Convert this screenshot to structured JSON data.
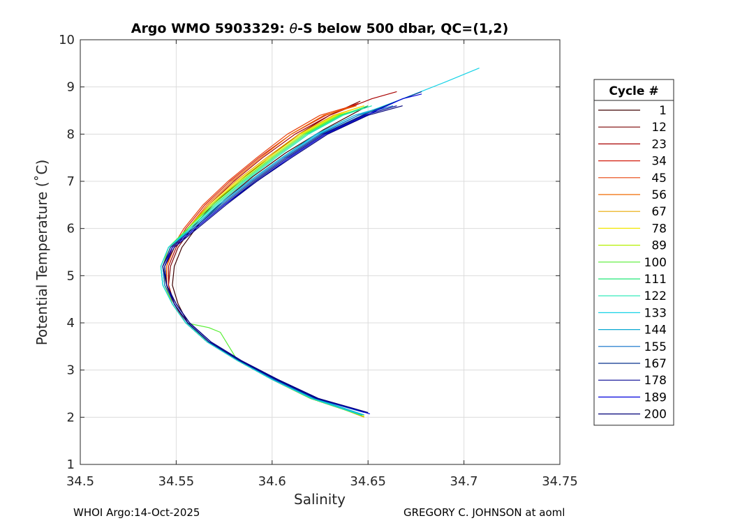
{
  "chart_data": {
    "type": "line",
    "title": "Argo WMO 5903329: θ-S below 500 dbar,  QC=(1,2)",
    "xlabel": "Salinity",
    "ylabel": "Potential Temperature (˚C)",
    "xlim": [
      34.5,
      34.75
    ],
    "ylim": [
      1,
      10
    ],
    "xticks": [
      "34.5",
      "34.55",
      "34.6",
      "34.65",
      "34.7",
      "34.75"
    ],
    "yticks": [
      "1",
      "2",
      "3",
      "4",
      "5",
      "6",
      "7",
      "8",
      "9",
      "10"
    ],
    "grid": true,
    "legend": {
      "title": "Cycle #",
      "placement": "right outside",
      "entries": [
        {
          "label": "1",
          "color": "#3d0000"
        },
        {
          "label": "12",
          "color": "#7a0000"
        },
        {
          "label": "23",
          "color": "#a80000"
        },
        {
          "label": "34",
          "color": "#d21c0c"
        },
        {
          "label": "45",
          "color": "#e8400a"
        },
        {
          "label": "56",
          "color": "#f06a00"
        },
        {
          "label": "67",
          "color": "#e8a800"
        },
        {
          "label": "78",
          "color": "#f2e600"
        },
        {
          "label": "89",
          "color": "#b4f000"
        },
        {
          "label": "100",
          "color": "#55ee30"
        },
        {
          "label": "111",
          "color": "#22e878"
        },
        {
          "label": "122",
          "color": "#1ee8b4"
        },
        {
          "label": "133",
          "color": "#14d2e6"
        },
        {
          "label": "144",
          "color": "#0aa8d2"
        },
        {
          "label": "155",
          "color": "#0a6ec8"
        },
        {
          "label": "167",
          "color": "#06308c"
        },
        {
          "label": "178",
          "color": "#000090"
        },
        {
          "label": "189",
          "color": "#0000dc"
        },
        {
          "label": "200",
          "color": "#000078"
        }
      ]
    },
    "series": [
      {
        "name": "1",
        "color": "#3d0000",
        "x": [
          34.646,
          34.62,
          34.6,
          34.582,
          34.566,
          34.556,
          34.551,
          34.548,
          34.549,
          34.553,
          34.562,
          34.575,
          34.59,
          34.607,
          34.627,
          34.65
        ],
        "y": [
          2.05,
          2.4,
          2.8,
          3.2,
          3.6,
          4.0,
          4.4,
          4.8,
          5.2,
          5.6,
          6.1,
          6.6,
          7.1,
          7.6,
          8.1,
          8.6
        ]
      },
      {
        "name": "12",
        "color": "#7a0000",
        "x": [
          34.646,
          34.62,
          34.6,
          34.582,
          34.566,
          34.555,
          34.549,
          34.546,
          34.547,
          34.551,
          34.558,
          34.569,
          34.583,
          34.598,
          34.614,
          34.63,
          34.646
        ],
        "y": [
          2.05,
          2.4,
          2.8,
          3.2,
          3.6,
          4.0,
          4.4,
          4.8,
          5.2,
          5.6,
          6.0,
          6.5,
          7.0,
          7.5,
          8.0,
          8.4,
          8.7
        ]
      },
      {
        "name": "23",
        "color": "#a80000",
        "x": [
          34.646,
          34.62,
          34.6,
          34.582,
          34.566,
          34.555,
          34.549,
          34.546,
          34.546,
          34.55,
          34.556,
          34.567,
          34.58,
          34.595,
          34.612,
          34.63,
          34.652,
          34.665
        ],
        "y": [
          2.05,
          2.4,
          2.8,
          3.2,
          3.6,
          4.0,
          4.4,
          4.8,
          5.2,
          5.6,
          6.0,
          6.5,
          7.0,
          7.5,
          8.0,
          8.4,
          8.75,
          8.9
        ]
      },
      {
        "name": "34",
        "color": "#d21c0c",
        "x": [
          34.646,
          34.62,
          34.6,
          34.582,
          34.566,
          34.555,
          34.548,
          34.545,
          34.545,
          34.549,
          34.555,
          34.565,
          34.578,
          34.593,
          34.61,
          34.628,
          34.645
        ],
        "y": [
          2.05,
          2.4,
          2.8,
          3.2,
          3.6,
          4.0,
          4.4,
          4.8,
          5.2,
          5.6,
          6.0,
          6.5,
          7.0,
          7.5,
          8.0,
          8.4,
          8.65
        ]
      },
      {
        "name": "45",
        "color": "#e8400a",
        "x": [
          34.646,
          34.62,
          34.6,
          34.582,
          34.566,
          34.555,
          34.548,
          34.545,
          34.545,
          34.548,
          34.554,
          34.564,
          34.577,
          34.592,
          34.608,
          34.625,
          34.642
        ],
        "y": [
          2.05,
          2.4,
          2.8,
          3.2,
          3.6,
          4.0,
          4.4,
          4.8,
          5.2,
          5.6,
          6.0,
          6.5,
          7.0,
          7.5,
          8.0,
          8.4,
          8.6
        ]
      },
      {
        "name": "56",
        "color": "#f06a00",
        "x": [
          34.646,
          34.62,
          34.6,
          34.582,
          34.566,
          34.555,
          34.548,
          34.545,
          34.545,
          34.549,
          34.556,
          34.566,
          34.579,
          34.594,
          34.61,
          34.627,
          34.644
        ],
        "y": [
          2.05,
          2.4,
          2.8,
          3.2,
          3.6,
          4.0,
          4.4,
          4.8,
          5.2,
          5.6,
          6.0,
          6.5,
          7.0,
          7.5,
          8.0,
          8.4,
          8.6
        ]
      },
      {
        "name": "67",
        "color": "#e8a800",
        "x": [
          34.648,
          34.622,
          34.601,
          34.583,
          34.567,
          34.555,
          34.548,
          34.544,
          34.544,
          34.548,
          34.556,
          34.567,
          34.581,
          34.597,
          34.614,
          34.632,
          34.648
        ],
        "y": [
          2.0,
          2.4,
          2.8,
          3.2,
          3.6,
          4.0,
          4.4,
          4.8,
          5.2,
          5.6,
          6.0,
          6.5,
          7.0,
          7.5,
          8.0,
          8.4,
          8.6
        ]
      },
      {
        "name": "78",
        "color": "#f2e600",
        "x": [
          34.646,
          34.62,
          34.6,
          34.582,
          34.566,
          34.555,
          34.548,
          34.544,
          34.543,
          34.547,
          34.556,
          34.568,
          34.582,
          34.598,
          34.615,
          34.633,
          34.648
        ],
        "y": [
          2.05,
          2.4,
          2.8,
          3.2,
          3.6,
          4.0,
          4.4,
          4.8,
          5.2,
          5.6,
          6.0,
          6.5,
          7.0,
          7.5,
          8.0,
          8.4,
          8.6
        ]
      },
      {
        "name": "89",
        "color": "#b4f000",
        "x": [
          34.648,
          34.621,
          34.6,
          34.582,
          34.567,
          34.555,
          34.548,
          34.544,
          34.543,
          34.546,
          34.556,
          34.568,
          34.583,
          34.599,
          34.616,
          34.634,
          34.648
        ],
        "y": [
          2.02,
          2.4,
          2.8,
          3.2,
          3.6,
          4.0,
          4.4,
          4.8,
          5.2,
          5.6,
          6.0,
          6.5,
          7.0,
          7.5,
          8.0,
          8.4,
          8.55
        ]
      },
      {
        "name": "100",
        "color": "#55ee30",
        "x": [
          34.647,
          34.621,
          34.6,
          34.582,
          34.573,
          34.567,
          34.555,
          34.548,
          34.543,
          34.542,
          34.546,
          34.556,
          34.569,
          34.584,
          34.6,
          34.617,
          34.635,
          34.648
        ],
        "y": [
          2.03,
          2.4,
          2.8,
          3.2,
          3.8,
          3.9,
          4.0,
          4.4,
          4.8,
          5.2,
          5.6,
          6.0,
          6.5,
          7.0,
          7.5,
          8.0,
          8.4,
          8.55
        ]
      },
      {
        "name": "111",
        "color": "#22e878",
        "x": [
          34.646,
          34.62,
          34.6,
          34.582,
          34.566,
          34.555,
          34.548,
          34.543,
          34.542,
          34.546,
          34.557,
          34.57,
          34.585,
          34.601,
          34.618,
          34.636,
          34.65
        ],
        "y": [
          2.05,
          2.4,
          2.8,
          3.2,
          3.6,
          4.0,
          4.4,
          4.8,
          5.2,
          5.6,
          6.0,
          6.5,
          7.0,
          7.5,
          8.0,
          8.4,
          8.6
        ]
      },
      {
        "name": "122",
        "color": "#1ee8b4",
        "x": [
          34.647,
          34.621,
          34.6,
          34.582,
          34.566,
          34.555,
          34.548,
          34.543,
          34.542,
          34.546,
          34.557,
          34.571,
          34.586,
          34.602,
          34.619,
          34.637,
          34.652
        ],
        "y": [
          2.05,
          2.4,
          2.8,
          3.2,
          3.6,
          4.0,
          4.4,
          4.8,
          5.2,
          5.6,
          6.0,
          6.5,
          7.0,
          7.5,
          8.0,
          8.4,
          8.6
        ]
      },
      {
        "name": "133",
        "color": "#14d2e6",
        "x": [
          34.647,
          34.621,
          34.6,
          34.582,
          34.566,
          34.555,
          34.548,
          34.543,
          34.542,
          34.546,
          34.558,
          34.572,
          34.588,
          34.605,
          34.624,
          34.645,
          34.665,
          34.69,
          34.708
        ],
        "y": [
          2.05,
          2.4,
          2.8,
          3.2,
          3.6,
          4.0,
          4.4,
          4.8,
          5.2,
          5.6,
          6.0,
          6.5,
          7.0,
          7.5,
          8.0,
          8.4,
          8.7,
          9.1,
          9.4
        ]
      },
      {
        "name": "144",
        "color": "#0aa8d2",
        "x": [
          34.648,
          34.622,
          34.601,
          34.583,
          34.567,
          34.556,
          34.549,
          34.544,
          34.543,
          34.547,
          34.558,
          34.572,
          34.588,
          34.605,
          34.623,
          34.643,
          34.66
        ],
        "y": [
          2.05,
          2.4,
          2.8,
          3.2,
          3.6,
          4.0,
          4.4,
          4.8,
          5.2,
          5.6,
          6.0,
          6.5,
          7.0,
          7.5,
          8.0,
          8.4,
          8.6
        ]
      },
      {
        "name": "155",
        "color": "#0a6ec8",
        "x": [
          34.648,
          34.622,
          34.601,
          34.583,
          34.567,
          34.556,
          34.549,
          34.544,
          34.543,
          34.547,
          34.559,
          34.573,
          34.589,
          34.606,
          34.625,
          34.645,
          34.663
        ],
        "y": [
          2.1,
          2.4,
          2.8,
          3.2,
          3.6,
          4.0,
          4.4,
          4.8,
          5.2,
          5.6,
          6.0,
          6.5,
          7.0,
          7.5,
          8.0,
          8.4,
          8.6
        ]
      },
      {
        "name": "167",
        "color": "#06308c",
        "x": [
          34.649,
          34.623,
          34.602,
          34.583,
          34.567,
          34.556,
          34.549,
          34.545,
          34.543,
          34.547,
          34.559,
          34.574,
          34.59,
          34.607,
          34.626,
          34.647,
          34.665,
          34.678
        ],
        "y": [
          2.1,
          2.4,
          2.8,
          3.2,
          3.6,
          4.0,
          4.4,
          4.8,
          5.2,
          5.6,
          6.0,
          6.5,
          7.0,
          7.5,
          8.0,
          8.4,
          8.7,
          8.9
        ]
      },
      {
        "name": "178",
        "color": "#000090",
        "x": [
          34.649,
          34.623,
          34.602,
          34.583,
          34.567,
          34.556,
          34.549,
          34.545,
          34.543,
          34.548,
          34.56,
          34.575,
          34.591,
          34.608,
          34.627,
          34.648,
          34.665
        ],
        "y": [
          2.1,
          2.4,
          2.8,
          3.2,
          3.6,
          4.0,
          4.4,
          4.8,
          5.2,
          5.6,
          6.0,
          6.5,
          7.0,
          7.5,
          8.0,
          8.4,
          8.6
        ]
      },
      {
        "name": "189",
        "color": "#0000dc",
        "x": [
          34.651,
          34.624,
          34.603,
          34.584,
          34.568,
          34.557,
          34.55,
          34.545,
          34.544,
          34.548,
          34.56,
          34.575,
          34.592,
          34.609,
          34.628,
          34.649,
          34.668,
          34.678
        ],
        "y": [
          2.07,
          2.4,
          2.8,
          3.2,
          3.6,
          4.0,
          4.4,
          4.8,
          5.2,
          5.6,
          6.0,
          6.5,
          7.0,
          7.5,
          8.0,
          8.4,
          8.75,
          8.85
        ]
      },
      {
        "name": "200",
        "color": "#000078",
        "x": [
          34.65,
          34.624,
          34.603,
          34.584,
          34.568,
          34.557,
          34.55,
          34.545,
          34.544,
          34.549,
          34.561,
          34.576,
          34.592,
          34.61,
          34.629,
          34.65,
          34.668
        ],
        "y": [
          2.1,
          2.4,
          2.8,
          3.2,
          3.6,
          4.0,
          4.4,
          4.8,
          5.2,
          5.6,
          6.0,
          6.5,
          7.0,
          7.5,
          8.0,
          8.4,
          8.6
        ]
      }
    ]
  },
  "footer": {
    "left": "WHOI Argo:14-Oct-2025",
    "right": "GREGORY C. JOHNSON at aoml"
  }
}
